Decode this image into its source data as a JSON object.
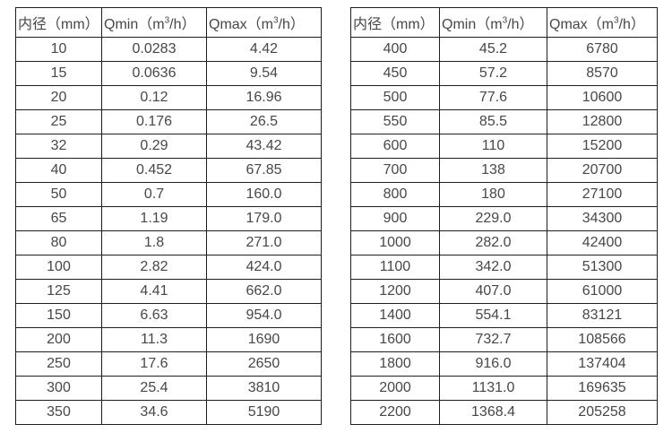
{
  "page": {
    "background_color": "#ffffff",
    "border_color": "#1f1f1f",
    "text_color": "#474747"
  },
  "tables": [
    {
      "name": "flow-spec-small-diameters",
      "header": {
        "diameter": "内径（mm）",
        "qmin_pre": "Qmin（m",
        "qmin_sup": "3",
        "qmin_post": "/h）",
        "qmax_pre": "Qmax（m",
        "qmax_sup": "3",
        "qmax_post": "/h）"
      },
      "rows": [
        [
          "10",
          "0.0283",
          "4.42"
        ],
        [
          "15",
          "0.0636",
          "9.54"
        ],
        [
          "20",
          "0.12",
          "16.96"
        ],
        [
          "25",
          "0.176",
          "26.5"
        ],
        [
          "32",
          "0.29",
          "43.42"
        ],
        [
          "40",
          "0.452",
          "67.85"
        ],
        [
          "50",
          "0.7",
          "160.0"
        ],
        [
          "65",
          "1.19",
          "179.0"
        ],
        [
          "80",
          "1.8",
          "271.0"
        ],
        [
          "100",
          "2.82",
          "424.0"
        ],
        [
          "125",
          "4.41",
          "662.0"
        ],
        [
          "150",
          "6.63",
          "954.0"
        ],
        [
          "200",
          "11.3",
          "1690"
        ],
        [
          "250",
          "17.6",
          "2650"
        ],
        [
          "300",
          "25.4",
          "3810"
        ],
        [
          "350",
          "34.6",
          "5190"
        ]
      ]
    },
    {
      "name": "flow-spec-large-diameters",
      "header": {
        "diameter": "内径（mm）",
        "qmin_pre": "Qmin（m",
        "qmin_sup": "3",
        "qmin_post": "/h）",
        "qmax_pre": "Qmax（m",
        "qmax_sup": "3",
        "qmax_post": "/h）"
      },
      "rows": [
        [
          "400",
          "45.2",
          "6780"
        ],
        [
          "450",
          "57.2",
          "8570"
        ],
        [
          "500",
          "77.6",
          "10600"
        ],
        [
          "550",
          "85.5",
          "12800"
        ],
        [
          "600",
          "110",
          "15200"
        ],
        [
          "700",
          "138",
          "20700"
        ],
        [
          "800",
          "180",
          "27100"
        ],
        [
          "900",
          "229.0",
          "34300"
        ],
        [
          "1000",
          "282.0",
          "42400"
        ],
        [
          "1100",
          "342.0",
          "51300"
        ],
        [
          "1200",
          "407.0",
          "61000"
        ],
        [
          "1400",
          "554.1",
          "83121"
        ],
        [
          "1600",
          "732.7",
          "108566"
        ],
        [
          "1800",
          "916.0",
          "137404"
        ],
        [
          "2000",
          "1131.0",
          "169635"
        ],
        [
          "2200",
          "1368.4",
          "205258"
        ]
      ]
    }
  ]
}
